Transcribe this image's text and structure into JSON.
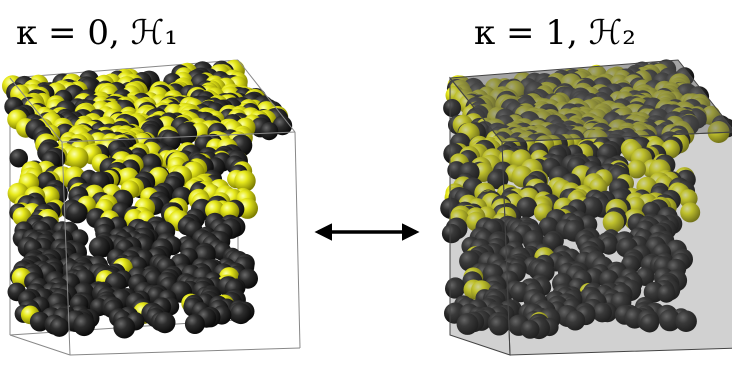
{
  "panels": [
    {
      "label": "κ = 0, ℋ₁"
    },
    {
      "label": "κ = 1, ℋ₂"
    }
  ]
}
